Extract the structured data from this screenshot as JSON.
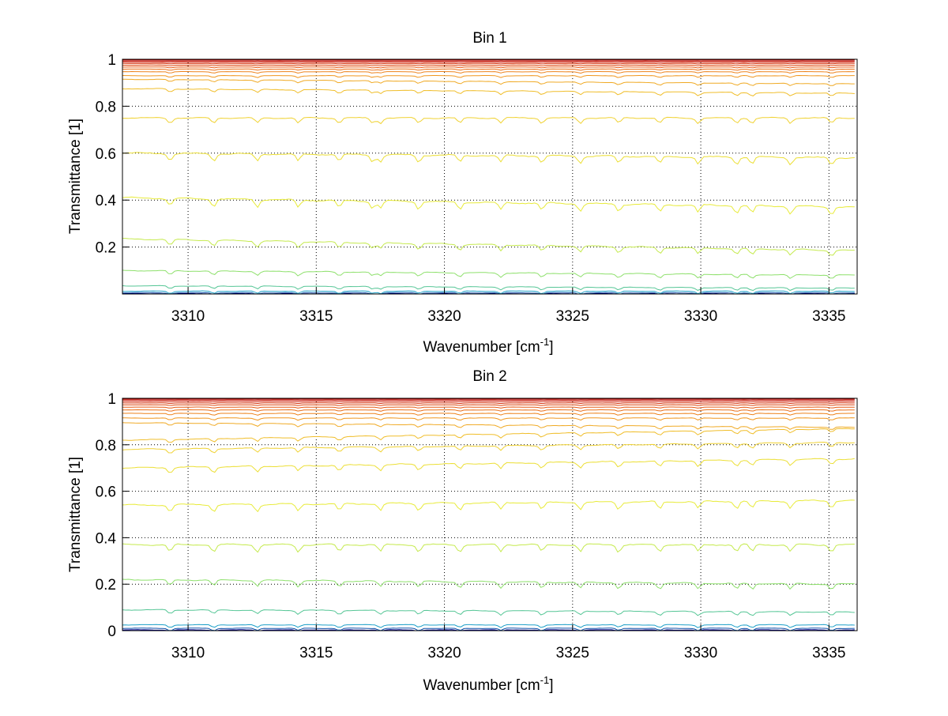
{
  "chart_data": [
    {
      "type": "line",
      "title": "Bin 1",
      "xlabel": "Wavenumber [cm",
      "xlabel_sup": "-1",
      "xlabel_end": "]",
      "ylabel": "Transmittance [1]",
      "xlim": [
        3307.44,
        3336.1
      ],
      "ylim": [
        0,
        1
      ],
      "grid": true,
      "xticks": [
        3310,
        3315,
        3320,
        3325,
        3330,
        3335
      ],
      "yticks": [
        0.2,
        0.4,
        0.6,
        0.8,
        1
      ],
      "ytick_labels": [
        "0.2",
        "0.4",
        "0.6",
        "0.8",
        "1"
      ],
      "baselines": [
        1.0,
        0.997,
        0.993,
        0.988,
        0.982,
        0.975,
        0.967,
        0.958,
        0.947,
        0.93,
        0.905,
        0.865,
        0.75,
        0.59,
        0.39,
        0.21,
        0.09,
        0.03,
        0.012,
        0.005,
        0.001
      ],
      "tilt": [
        0,
        0,
        0,
        0,
        0,
        0,
        0,
        0,
        0,
        0,
        0.02,
        0.02,
        0,
        0.02,
        0.04,
        0.05,
        0.02,
        0.01,
        0,
        0,
        0
      ],
      "dips": [
        3309.3,
        3311,
        3312.7,
        3314.3,
        3315.9,
        3317.2,
        3317.5,
        3319,
        3320.6,
        3322.2,
        3323.8,
        3325.3,
        3326.8,
        3328.4,
        3329.9,
        3331.4,
        3332,
        3333.5,
        3335.1
      ]
    },
    {
      "type": "line",
      "title": "Bin 2",
      "xlabel": "Wavenumber [cm",
      "xlabel_sup": "-1",
      "xlabel_end": "]",
      "ylabel": "Transmittance [1]",
      "xlim": [
        3307.44,
        3336.1
      ],
      "ylim": [
        0,
        1
      ],
      "grid": true,
      "xticks": [
        3310,
        3315,
        3320,
        3325,
        3330,
        3335
      ],
      "yticks": [
        0,
        0.2,
        0.4,
        0.6,
        0.8,
        1
      ],
      "ytick_labels": [
        "0",
        "0.2",
        "0.4",
        "0.6",
        "0.8",
        "1"
      ],
      "baselines": [
        1.0,
        0.997,
        0.993,
        0.987,
        0.98,
        0.972,
        0.962,
        0.95,
        0.935,
        0.915,
        0.885,
        0.845,
        0.795,
        0.72,
        0.55,
        0.37,
        0.21,
        0.085,
        0.025,
        0.01,
        0.003
      ],
      "tilt": [
        0,
        0,
        0,
        0,
        0,
        0,
        0,
        0,
        0,
        0,
        0.02,
        -0.05,
        -0.03,
        -0.04,
        -0.02,
        0,
        0.02,
        0.01,
        0,
        0,
        0
      ],
      "dips": [
        3309.3,
        3311,
        3312.7,
        3314.3,
        3315.9,
        3317.5,
        3319,
        3320.6,
        3322.2,
        3323.8,
        3325.3,
        3326.8,
        3328.4,
        3329.9,
        3331.4,
        3332,
        3333.5,
        3335.1
      ]
    }
  ]
}
